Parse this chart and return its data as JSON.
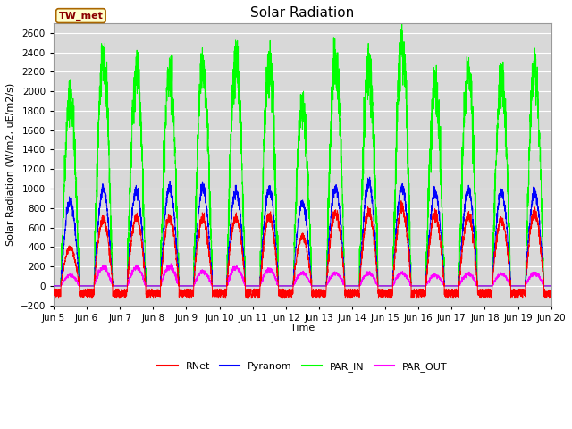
{
  "title": "Solar Radiation",
  "ylabel": "Solar Radiation (W/m2, uE/m2/s)",
  "xlabel": "Time",
  "ylim": [
    -200,
    2700
  ],
  "yticks": [
    -200,
    0,
    200,
    400,
    600,
    800,
    1000,
    1200,
    1400,
    1600,
    1800,
    2000,
    2200,
    2400,
    2600
  ],
  "station_label": "TW_met",
  "legend_labels": [
    "RNet",
    "Pyranom",
    "PAR_IN",
    "PAR_OUT"
  ],
  "line_colors": {
    "RNet": "#ff0000",
    "Pyranom": "#0000ff",
    "PAR_IN": "#00ff00",
    "PAR_OUT": "#ff00ff"
  },
  "n_days": 15,
  "start_day": 5,
  "plot_bg_color": "#d8d8d8",
  "fig_bg_color": "#ffffff",
  "grid_color": "#ffffff",
  "title_fontsize": 11,
  "label_fontsize": 8,
  "tick_fontsize": 7.5
}
